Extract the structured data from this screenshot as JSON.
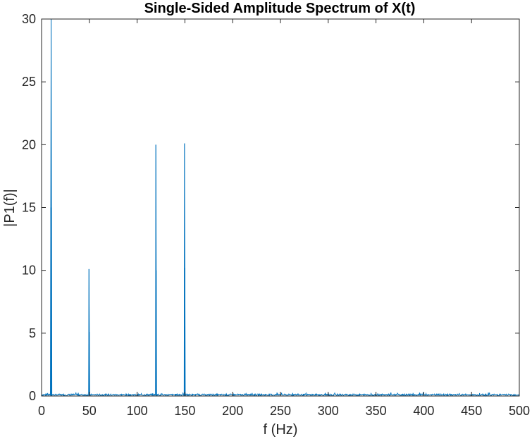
{
  "chart_data": {
    "type": "line",
    "title": "Single-Sided Amplitude Spectrum of X(t)",
    "xlabel": "f (Hz)",
    "ylabel": "|P1(f)|",
    "xlim": [
      0,
      500
    ],
    "ylim": [
      0,
      30
    ],
    "xticks": [
      0,
      50,
      100,
      150,
      200,
      250,
      300,
      350,
      400,
      450,
      500
    ],
    "yticks": [
      0,
      5,
      10,
      15,
      20,
      25,
      30
    ],
    "grid": false,
    "box": true,
    "series": [
      {
        "color": "#0072BD",
        "peaks": [
          {
            "x": 9.6,
            "y": 15.0
          },
          {
            "x": 10.0,
            "y": 30.0
          },
          {
            "x": 10.4,
            "y": 15.0
          },
          {
            "x": 49.6,
            "y": 10.1
          },
          {
            "x": 50.0,
            "y": 5.1
          },
          {
            "x": 119.6,
            "y": 20.0
          },
          {
            "x": 120.0,
            "y": 10.0
          },
          {
            "x": 149.6,
            "y": 20.1
          },
          {
            "x": 150.0,
            "y": 10.2
          }
        ],
        "noise_floor": 0.15,
        "noise_max": 0.3
      }
    ]
  }
}
